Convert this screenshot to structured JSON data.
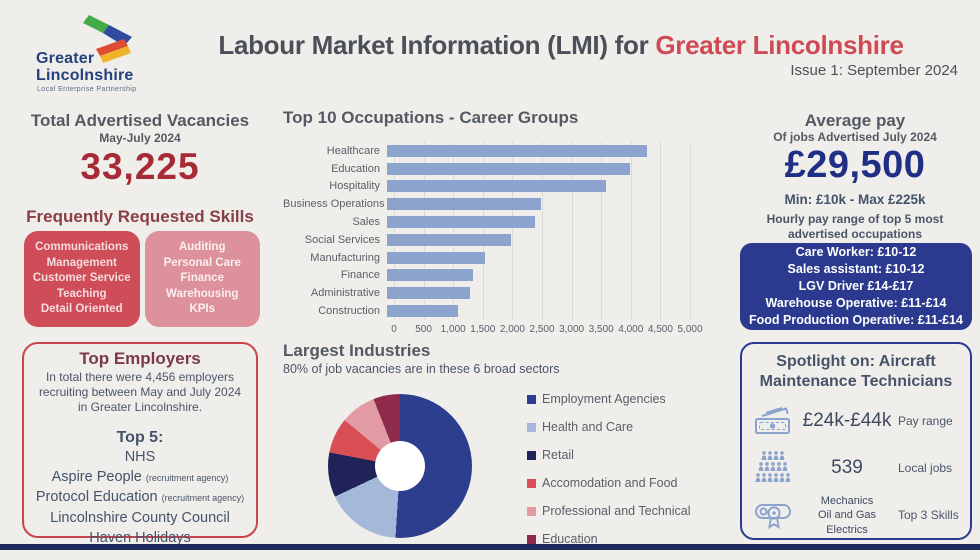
{
  "header": {
    "title_prefix": "Labour Market Information (LMI) for ",
    "title_highlight": "Greater Lincolnshire",
    "issue": "Issue 1: September 2024"
  },
  "logo": {
    "line1": "Greater",
    "line2": "Lincolnshire",
    "tagline": "Local Enterprise Partnership"
  },
  "vacancies": {
    "heading": "Total Advertised Vacancies",
    "period": "May-July 2024",
    "value": "33,225"
  },
  "skills": {
    "heading": "Frequently Requested Skills",
    "primary": [
      "Communications",
      "Management",
      "Customer Service",
      "Teaching",
      "Detail Oriented"
    ],
    "secondary": [
      "Auditing",
      "Personal Care",
      "Finance",
      "Warehousing",
      "KPIs"
    ]
  },
  "employers": {
    "heading": "Top Employers",
    "summary": "In total there were 4,456 employers recruiting between May and July 2024 in Greater Lincolnshire.",
    "top5_label": "Top 5:",
    "list": [
      {
        "name": "NHS",
        "note": ""
      },
      {
        "name": "Aspire People",
        "note": "(recruitment agency)"
      },
      {
        "name": "Protocol Education",
        "note": "(recruitment agency)"
      },
      {
        "name": "Lincolnshire County Council",
        "note": ""
      },
      {
        "name": "Haven Holidays",
        "note": ""
      }
    ]
  },
  "average_pay": {
    "heading": "Average pay",
    "subheading": "Of jobs Advertised July 2024",
    "value": "£29,500",
    "range": "Min: £10k - Max £225k",
    "hourly_intro": "Hourly pay range of top 5 most advertised occupations",
    "hourly_rows": [
      "Care Worker: £10-12",
      "Sales assistant: £10-12",
      "LGV Driver £14-£17",
      "Warehouse Operative: £11-£14",
      "Food Production Operative: £11-£14"
    ]
  },
  "spotlight": {
    "heading": "Spotlight on: Aircraft Maintenance Technicians",
    "rows": [
      {
        "icon": "banknotes-icon",
        "value": "£24k-£44k",
        "label": "Pay range"
      },
      {
        "icon": "crowd-icon",
        "value": "539",
        "label": "Local jobs"
      },
      {
        "icon": "certificate-icon",
        "value": [
          "Mechanics",
          "Oil and Gas",
          "Electrics"
        ],
        "label": "Top 3 Skills"
      }
    ]
  },
  "chart_data": [
    {
      "type": "bar",
      "orientation": "horizontal",
      "title": "Top 10 Occupations - Career Groups",
      "categories": [
        "Healthcare",
        "Education",
        "Hospitality",
        "Business Operations",
        "Sales",
        "Social Services",
        "Manufacturing",
        "Finance",
        "Administrative",
        "Construction"
      ],
      "values": [
        4400,
        4100,
        3700,
        2600,
        2500,
        2100,
        1650,
        1450,
        1400,
        1200
      ],
      "xlim": [
        0,
        5000
      ],
      "xticks": [
        0,
        500,
        1000,
        1500,
        2000,
        2500,
        3000,
        3500,
        4000,
        4500,
        5000
      ],
      "xtick_labels": [
        "0",
        "500",
        "1,000",
        "1,500",
        "2,000",
        "2,500",
        "3,000",
        "3,500",
        "4,000",
        "4,500",
        "5,000"
      ],
      "bar_color": "#8ca3cd",
      "grid": true,
      "legend_position": "none"
    },
    {
      "type": "pie",
      "donut": true,
      "title": "Largest Industries",
      "subtitle": "80% of job vacancies are in these 6 broad sectors",
      "labels": [
        "Employment Agencies",
        "Health and Care",
        "Retail",
        "Accomodation and Food",
        "Professional and Technical",
        "Education"
      ],
      "values": [
        51,
        17,
        10,
        8,
        8,
        6
      ],
      "unit": "percent-of-circle",
      "colors": [
        "#2e3e8e",
        "#a4b8da",
        "#1f2357",
        "#d94f55",
        "#e29ba3",
        "#8e2a4c"
      ],
      "start_angle_deg": 0,
      "direction": "clockwise",
      "legend_position": "right"
    }
  ],
  "colors": {
    "background": "#efeeeb",
    "title_text": "#4b5058",
    "accent_red": "#d04a54",
    "big_number_red": "#a62b36",
    "skills_heading_red": "#8a3e45",
    "skill_box_dark": "#cf4d58",
    "skill_box_light": "#dd919b",
    "employers_border_red": "#c8454f",
    "bar_blue": "#8ca3cd",
    "pay_navy": "#202f86",
    "box_navy": "#2b3a8e",
    "footer_navy": "#1e2a5c"
  }
}
